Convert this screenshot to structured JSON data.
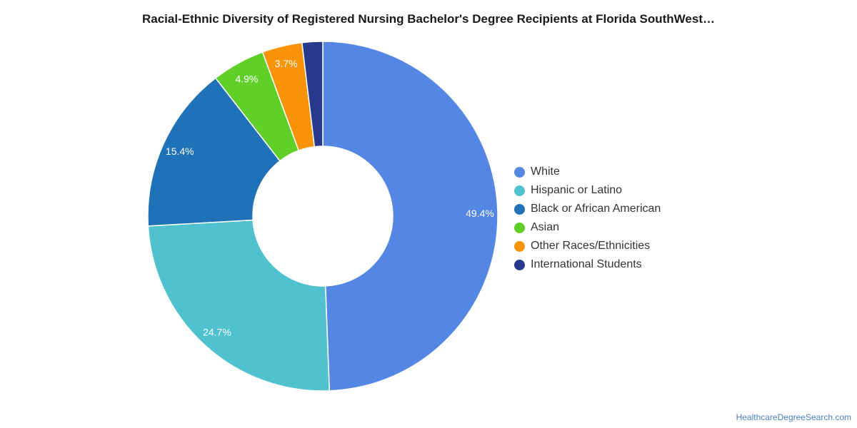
{
  "chart_data": {
    "type": "pie",
    "title": "Racial-Ethnic Diversity of Registered Nursing Bachelor's Degree Recipients at Florida SouthWest…",
    "categories": [
      "White",
      "Hispanic or Latino",
      "Black or African American",
      "Asian",
      "Other Races/Ethnicities",
      "International Students"
    ],
    "values": [
      49.4,
      24.7,
      15.4,
      4.9,
      3.7,
      1.9
    ],
    "data_labels": [
      "49.4%",
      "24.7%",
      "15.4%",
      "4.9%",
      "3.7%",
      ""
    ],
    "colors": [
      "#5486e3",
      "#50c1cf",
      "#1f71b8",
      "#60cf28",
      "#f99408",
      "#283a8c"
    ],
    "donut": true,
    "legend_position": "right"
  },
  "source": {
    "label": "HealthcareDegreeSearch.com"
  }
}
